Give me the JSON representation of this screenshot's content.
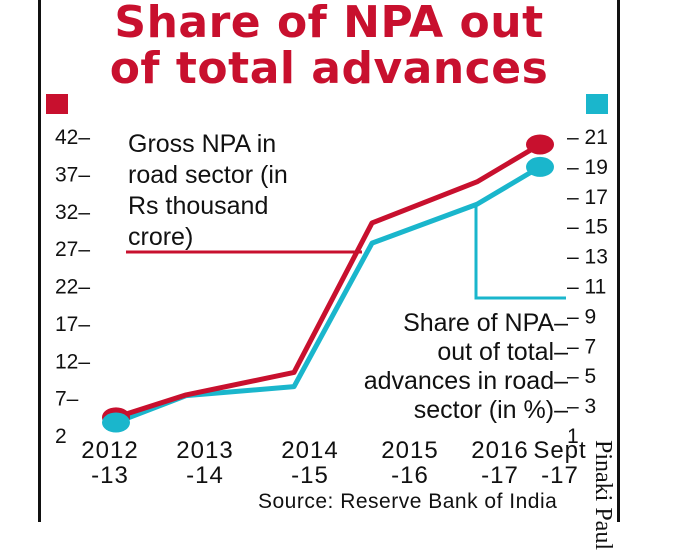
{
  "title": {
    "line1": "Share of NPA out",
    "line2": "of total advances"
  },
  "source": "Source: Reserve Bank of India",
  "credit": "Pinaki Paul",
  "colors": {
    "gross_npa": "#c8102e",
    "npa_share": "#1ab6cc",
    "text": "#111111"
  },
  "chart_data": {
    "type": "line",
    "title": "Share of NPA out of total advances",
    "categories": [
      [
        "2012",
        "-13"
      ],
      [
        "2013",
        "-14"
      ],
      [
        "2014",
        "-15"
      ],
      [
        "2015",
        "-16"
      ],
      [
        "2016",
        "-17"
      ],
      [
        "Sept",
        "-17"
      ]
    ],
    "left_axis": {
      "ticks": [
        2,
        7,
        12,
        17,
        22,
        27,
        32,
        37,
        42
      ],
      "labels": [
        "2",
        "7–",
        "12–",
        "17–",
        "22–",
        "27–",
        "32–",
        "37–",
        "42–"
      ],
      "range": [
        2,
        42
      ]
    },
    "right_axis": {
      "ticks": [
        1,
        3,
        5,
        7,
        9,
        11,
        13,
        15,
        17,
        19,
        21
      ],
      "labels": [
        "1",
        "– 3",
        "– 5",
        "– 7",
        "– 9",
        "– 11",
        "– 13",
        "– 15",
        "– 17",
        "– 19",
        "– 21"
      ],
      "range": [
        1,
        21
      ]
    },
    "series": [
      {
        "name": "Gross NPA in road sector (in Rs thousand crore)",
        "axis": "left",
        "color": "#c8102e",
        "values": [
          4.5,
          7.5,
          10.5,
          30.5,
          36,
          41
        ],
        "label_lines": [
          "Gross NPA in",
          "road sector (in",
          "Rs thousand",
          "crore)"
        ]
      },
      {
        "name": "Share of NPA out of total advances in road sector (in %)",
        "axis": "right",
        "color": "#1ab6cc",
        "values": [
          1.9,
          3.7,
          4.3,
          13.9,
          16.5,
          19
        ],
        "label_lines": [
          "Share of NPA–",
          "out of total–",
          "advances in road–",
          "sector (in %)–"
        ]
      }
    ]
  }
}
